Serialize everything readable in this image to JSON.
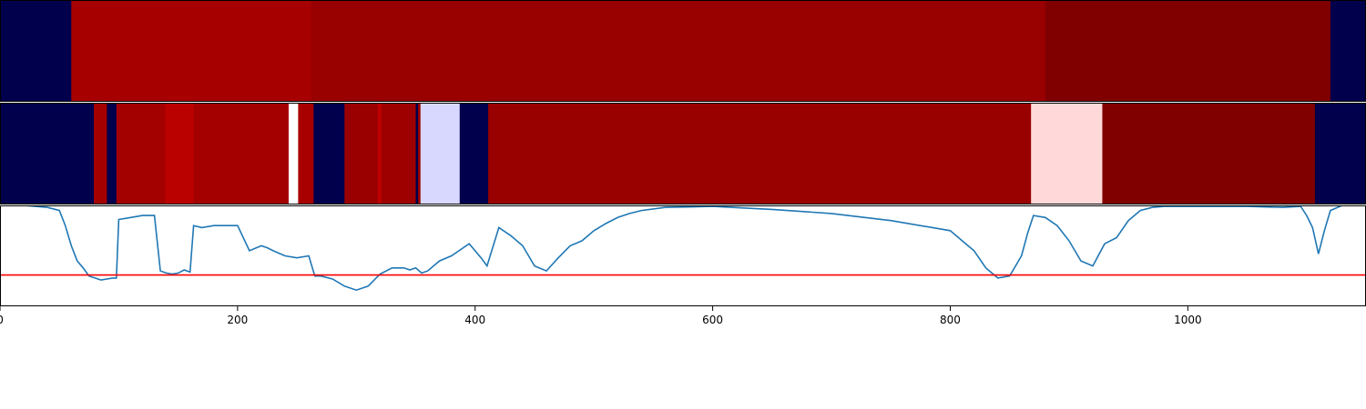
{
  "chart_data": [
    {
      "type": "heatmap",
      "xlim": [
        0,
        1150
      ],
      "segments": [
        {
          "start": 0,
          "end": 60,
          "color": "#00004c"
        },
        {
          "start": 60,
          "end": 262,
          "color": "#a70000"
        },
        {
          "start": 262,
          "end": 880,
          "color": "#990000"
        },
        {
          "start": 880,
          "end": 1120,
          "color": "#800000"
        },
        {
          "start": 1120,
          "end": 1150,
          "color": "#00004c"
        }
      ]
    },
    {
      "type": "heatmap",
      "xlim": [
        0,
        1150
      ],
      "segments": [
        {
          "start": 0,
          "end": 79,
          "color": "#00004c"
        },
        {
          "start": 79,
          "end": 90,
          "color": "#a50000"
        },
        {
          "start": 90,
          "end": 98,
          "color": "#00004c"
        },
        {
          "start": 98,
          "end": 139,
          "color": "#a30000"
        },
        {
          "start": 139,
          "end": 163,
          "color": "#bb0000"
        },
        {
          "start": 163,
          "end": 243,
          "color": "#a40000"
        },
        {
          "start": 243,
          "end": 251,
          "color": "#ffffff"
        },
        {
          "start": 251,
          "end": 264,
          "color": "#a80000"
        },
        {
          "start": 264,
          "end": 290,
          "color": "#00004c"
        },
        {
          "start": 290,
          "end": 318,
          "color": "#9a0000"
        },
        {
          "start": 318,
          "end": 321,
          "color": "#c00000"
        },
        {
          "start": 321,
          "end": 350,
          "color": "#9e0000"
        },
        {
          "start": 350,
          "end": 352,
          "color": "#00004c"
        },
        {
          "start": 352,
          "end": 354,
          "color": "#9e0000"
        },
        {
          "start": 354,
          "end": 387,
          "color": "#d8d8ff"
        },
        {
          "start": 387,
          "end": 411,
          "color": "#00004c"
        },
        {
          "start": 411,
          "end": 868,
          "color": "#990000"
        },
        {
          "start": 868,
          "end": 928,
          "color": "#ffd9d9"
        },
        {
          "start": 928,
          "end": 1107,
          "color": "#800000"
        },
        {
          "start": 1107,
          "end": 1150,
          "color": "#00004c"
        }
      ]
    },
    {
      "type": "line",
      "xlim": [
        0,
        1150
      ],
      "ylim": [
        0,
        1
      ],
      "threshold": {
        "y": 0.31,
        "color": "#ff0000"
      },
      "line_color": "#1f77b4",
      "xticks": [
        0,
        200,
        400,
        600,
        800,
        1000
      ],
      "xtick_labels": [
        "0",
        "200",
        "400",
        "600",
        "800",
        "1000"
      ],
      "series": [
        {
          "x": [
            0,
            20,
            40,
            50,
            55,
            60,
            65,
            70,
            75,
            80,
            85,
            90,
            95,
            98,
            100,
            110,
            120,
            130,
            135,
            140,
            145,
            150,
            155,
            160,
            163,
            170,
            180,
            190,
            200,
            210,
            220,
            225,
            230,
            240,
            250,
            260,
            265,
            270,
            280,
            290,
            300,
            310,
            320,
            330,
            340,
            345,
            350,
            355,
            360,
            370,
            380,
            390,
            395,
            400,
            405,
            410,
            420,
            430,
            440,
            450,
            460,
            470,
            480,
            490,
            500,
            510,
            520,
            530,
            540,
            560,
            600,
            650,
            700,
            750,
            800,
            810,
            820,
            830,
            840,
            850,
            860,
            865,
            870,
            880,
            890,
            900,
            910,
            920,
            930,
            940,
            950,
            960,
            970,
            980,
            1000,
            1050,
            1080,
            1095,
            1100,
            1105,
            1110,
            1115,
            1120,
            1130,
            1150
          ],
          "y": [
            1.0,
            1.0,
            0.98,
            0.95,
            0.8,
            0.6,
            0.45,
            0.38,
            0.3,
            0.28,
            0.26,
            0.27,
            0.28,
            0.28,
            0.86,
            0.88,
            0.9,
            0.9,
            0.35,
            0.33,
            0.32,
            0.33,
            0.36,
            0.34,
            0.8,
            0.78,
            0.8,
            0.8,
            0.8,
            0.55,
            0.6,
            0.58,
            0.55,
            0.5,
            0.48,
            0.5,
            0.3,
            0.3,
            0.27,
            0.2,
            0.16,
            0.2,
            0.32,
            0.38,
            0.38,
            0.36,
            0.38,
            0.33,
            0.35,
            0.45,
            0.5,
            0.58,
            0.62,
            0.55,
            0.48,
            0.4,
            0.78,
            0.7,
            0.6,
            0.4,
            0.35,
            0.48,
            0.6,
            0.65,
            0.75,
            0.82,
            0.88,
            0.92,
            0.95,
            0.98,
            0.99,
            0.96,
            0.92,
            0.85,
            0.75,
            0.65,
            0.55,
            0.38,
            0.28,
            0.3,
            0.5,
            0.72,
            0.9,
            0.88,
            0.8,
            0.65,
            0.45,
            0.4,
            0.62,
            0.68,
            0.85,
            0.95,
            0.98,
            0.99,
            0.99,
            0.99,
            0.98,
            0.99,
            0.9,
            0.78,
            0.52,
            0.75,
            0.95,
            1.0,
            1.0
          ]
        }
      ]
    }
  ]
}
